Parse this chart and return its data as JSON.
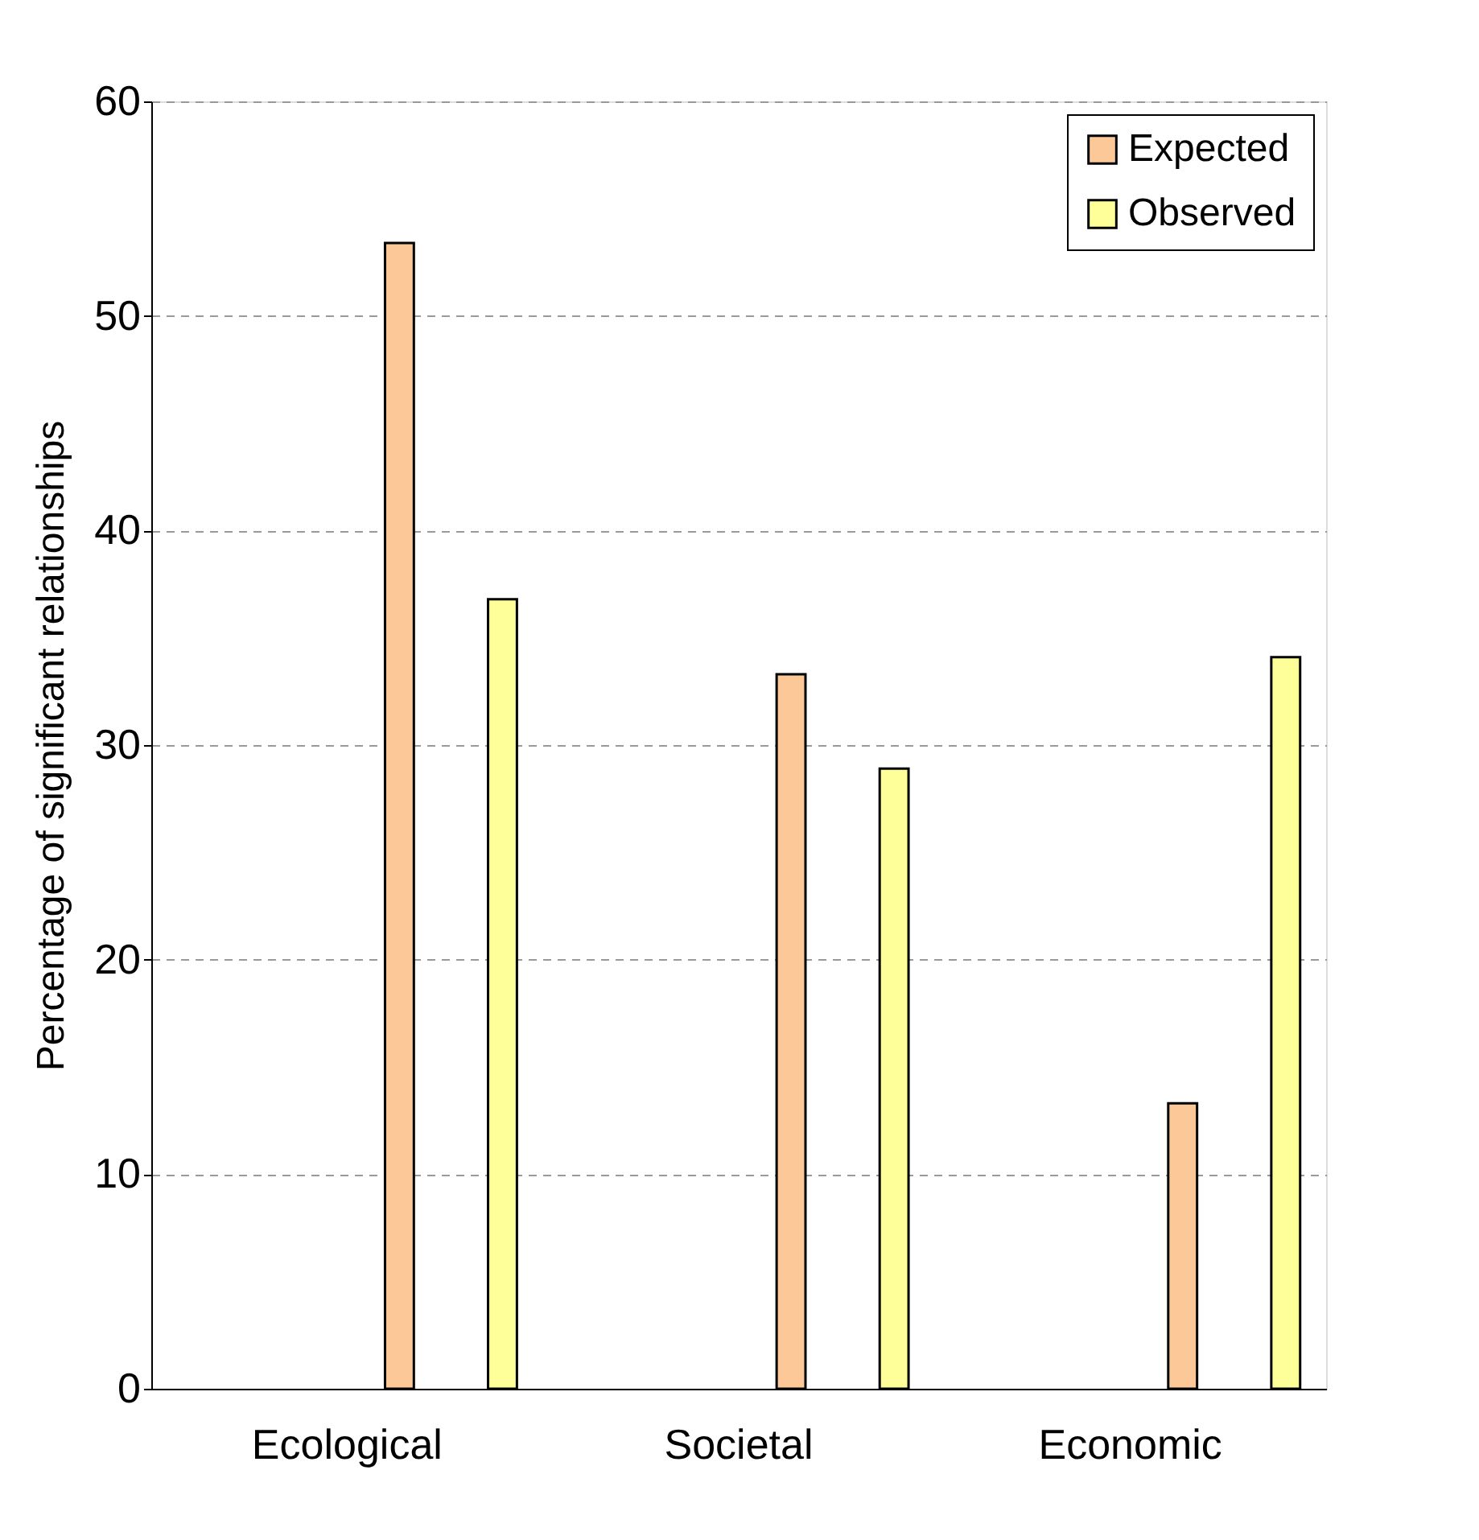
{
  "chart_data": {
    "type": "bar",
    "ylabel": "Percentage of significant relationships",
    "categories": [
      "Ecological",
      "Societal",
      "Economic"
    ],
    "series": [
      {
        "name": "Expected",
        "color": "#fcc897",
        "values": [
          53.4,
          33.3,
          13.3
        ]
      },
      {
        "name": "Observed",
        "color": "#ffff99",
        "values": [
          36.8,
          28.9,
          34.1
        ]
      }
    ],
    "ylim": [
      0,
      60
    ],
    "yticks": [
      0,
      10,
      20,
      30,
      40,
      50,
      60
    ],
    "grid": "y",
    "legend": "top right"
  }
}
